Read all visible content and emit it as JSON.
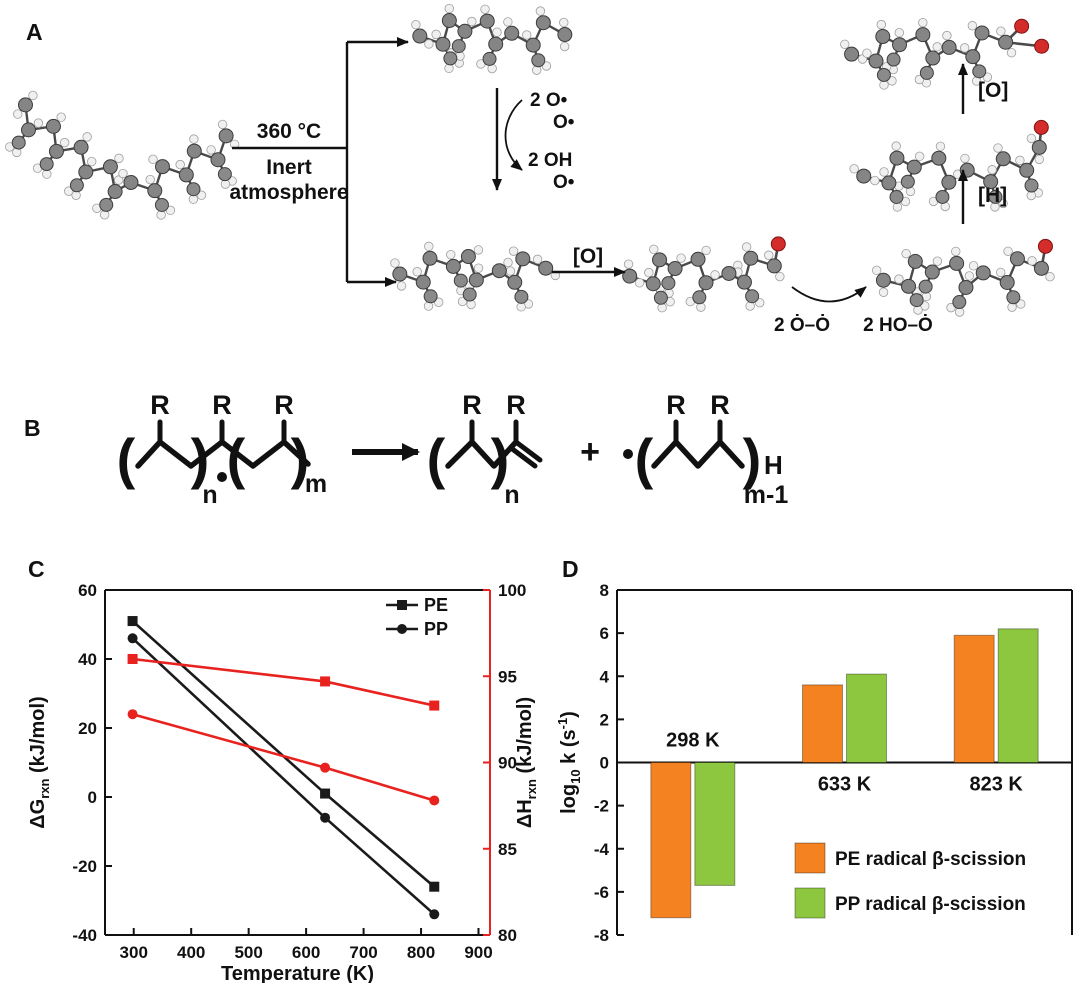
{
  "figure": {
    "panelA_label": "A",
    "panelB_label": "B",
    "panelC_label": "C",
    "panelD_label": "D"
  },
  "panelA": {
    "temperature": "360 °C",
    "atmosphere_line1": "Inert",
    "atmosphere_line2": "atmosphere",
    "peroxyl_in_line1": "2 O•",
    "peroxyl_in_line2": "O•",
    "hydroxyl_out_line1": "2 OH",
    "hydroxyl_out_line2": "O•",
    "oxidation_step1": "[O]",
    "peroxyl_pair": "2 Ȯ–Ȯ",
    "hydroperoxyl_pair": "2 HO–Ȯ",
    "hydrogen_step": "[H]",
    "oxidation_step2": "[O]"
  },
  "panelB": {
    "r_label": "R",
    "n_label": "n",
    "m_label": "m",
    "m_minus_1_label": "m-1",
    "plus_label": "+",
    "h_label": "H",
    "paren_open": "(",
    "paren_close": ")"
  },
  "chart_data": [
    {
      "type": "line",
      "panel": "C",
      "x": [
        298,
        633,
        823
      ],
      "xlabel": "Temperature (K)",
      "xticks": [
        300,
        400,
        500,
        600,
        700,
        800,
        900
      ],
      "xlim": [
        250,
        920
      ],
      "left_axis": {
        "label_prefix": "ΔG",
        "label_sub": "rxn",
        "label_suffix": " (kJ/mol)",
        "ylim": [
          -40,
          60
        ],
        "ticks": [
          60,
          40,
          20,
          0,
          -20,
          -40
        ],
        "color": "#111111"
      },
      "right_axis": {
        "label_prefix": "ΔH",
        "label_sub": "rxn",
        "label_suffix": " (kJ/mol)",
        "ylim": [
          80,
          100
        ],
        "ticks": [
          100,
          95,
          90,
          85,
          80
        ],
        "color": "#e8231f"
      },
      "series": [
        {
          "name": "PE",
          "axis": "left",
          "marker": "square",
          "color": "#1a1a1a",
          "values": [
            51,
            1,
            -26
          ]
        },
        {
          "name": "PP",
          "axis": "left",
          "marker": "circle",
          "color": "#1a1a1a",
          "values": [
            46,
            -6,
            -34
          ]
        },
        {
          "name": "PE",
          "axis": "right",
          "marker": "square",
          "color": "#e8231f",
          "values": [
            96.0,
            94.7,
            93.3
          ]
        },
        {
          "name": "PP",
          "axis": "right",
          "marker": "circle",
          "color": "#e8231f",
          "values": [
            92.8,
            89.7,
            87.8
          ]
        }
      ],
      "legend": [
        {
          "label": "PE",
          "marker": "square"
        },
        {
          "label": "PP",
          "marker": "circle"
        }
      ],
      "legend_position": "top-right",
      "grid": false
    },
    {
      "type": "bar",
      "panel": "D",
      "categories": [
        "298 K",
        "633 K",
        "823 K"
      ],
      "ylabel_parts": {
        "prefix": "log",
        "sub": "10",
        "mid": " k (s",
        "sup": "-1",
        "suffix": ")"
      },
      "ylim": [
        -8,
        8
      ],
      "yticks": [
        8,
        6,
        4,
        2,
        0,
        -2,
        -4,
        -6,
        -8
      ],
      "series": [
        {
          "name": "PE radical β-scission",
          "color": "#f58220",
          "values": [
            -7.2,
            3.6,
            5.9
          ]
        },
        {
          "name": "PP radical β-scission",
          "color": "#8dc63f",
          "values": [
            -5.7,
            4.1,
            6.2
          ]
        }
      ],
      "legend_position": "bottom-right",
      "grid": false
    }
  ]
}
